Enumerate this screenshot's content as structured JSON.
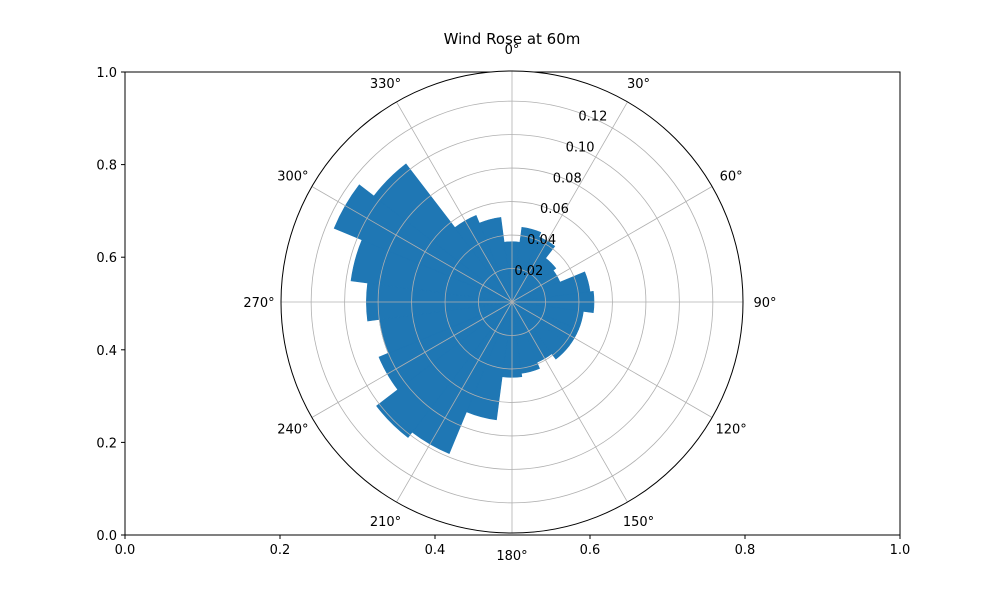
{
  "chart_data": {
    "type": "bar",
    "subtype": "polar-wind-rose",
    "title": "Wind Rose at 60m",
    "color": "#1f77b4",
    "bin_width_deg": 15,
    "angles_deg": [
      0,
      15,
      30,
      45,
      60,
      75,
      90,
      105,
      120,
      135,
      150,
      165,
      180,
      195,
      210,
      225,
      240,
      255,
      270,
      285,
      300,
      315,
      330,
      345
    ],
    "values": [
      0.036,
      0.045,
      0.042,
      0.033,
      0.031,
      0.047,
      0.049,
      0.043,
      0.043,
      0.043,
      0.039,
      0.043,
      0.045,
      0.071,
      0.098,
      0.102,
      0.086,
      0.08,
      0.087,
      0.097,
      0.115,
      0.104,
      0.056,
      0.051
    ],
    "radial_ticks": [
      "0.02",
      "0.04",
      "0.06",
      "0.08",
      "0.10",
      "0.12"
    ],
    "radial_tick_values": [
      0.02,
      0.04,
      0.06,
      0.08,
      0.1,
      0.12
    ],
    "rlim": [
      0,
      0.138
    ],
    "angle_ticks": [
      "0°",
      "30°",
      "60°",
      "90°",
      "120°",
      "150°",
      "180°",
      "210°",
      "240°",
      "270°",
      "300°",
      "330°"
    ],
    "angle_tick_values": [
      0,
      30,
      60,
      90,
      120,
      150,
      180,
      210,
      240,
      270,
      300,
      330
    ],
    "cartesian_axis": {
      "xticks": [
        "0.0",
        "0.2",
        "0.4",
        "0.6",
        "0.8",
        "1.0"
      ],
      "yticks": [
        "0.0",
        "0.2",
        "0.4",
        "0.6",
        "0.8",
        "1.0"
      ],
      "xlim": [
        0,
        1
      ],
      "ylim": [
        0,
        1
      ]
    },
    "grid": true
  }
}
